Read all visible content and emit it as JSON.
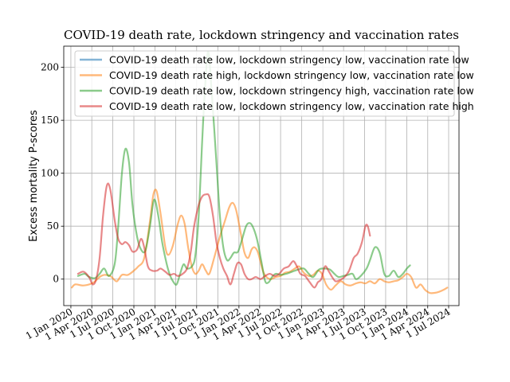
{
  "chart_data": {
    "type": "line",
    "title": "COVID-19 death rate, lockdown stringency and vaccination rates",
    "xlabel": "",
    "ylabel": "Excess mortality P-scores",
    "ylim": [
      -25,
      220
    ],
    "xlim": [
      "2019-12-01",
      "2024-08-15"
    ],
    "grid": true,
    "legend_position": "top",
    "yticks": [
      0,
      50,
      100,
      150,
      200
    ],
    "xticks": [
      {
        "date": "2020-01-01",
        "label": "1 Jan 2020"
      },
      {
        "date": "2020-04-01",
        "label": "1 Apr 2020"
      },
      {
        "date": "2020-07-01",
        "label": "1 Jul 2020"
      },
      {
        "date": "2020-10-01",
        "label": "1 Oct 2020"
      },
      {
        "date": "2021-01-01",
        "label": "1 Jan 2021"
      },
      {
        "date": "2021-04-01",
        "label": "1 Apr 2021"
      },
      {
        "date": "2021-07-01",
        "label": "1 Jul 2021"
      },
      {
        "date": "2021-10-01",
        "label": "1 Oct 2021"
      },
      {
        "date": "2022-01-01",
        "label": "1 Jan 2022"
      },
      {
        "date": "2022-04-01",
        "label": "1 Apr 2022"
      },
      {
        "date": "2022-07-01",
        "label": "1 Jul 2022"
      },
      {
        "date": "2022-10-01",
        "label": "1 Oct 2022"
      },
      {
        "date": "2023-01-01",
        "label": "1 Jan 2023"
      },
      {
        "date": "2023-04-01",
        "label": "1 Apr 2023"
      },
      {
        "date": "2023-07-01",
        "label": "1 Jul 2023"
      },
      {
        "date": "2023-10-01",
        "label": "1 Oct 2023"
      },
      {
        "date": "2024-01-01",
        "label": "1 Jan 2024"
      },
      {
        "date": "2024-04-01",
        "label": "1 Apr 2024"
      },
      {
        "date": "2024-07-01",
        "label": "1 Jul 2024"
      }
    ],
    "series": [
      {
        "name": "COVID-19 death rate low, lockdown stringency low, vaccination rate low",
        "color": "#1f77b4",
        "points": []
      },
      {
        "name": "COVID-19 death rate high, lockdown stringency low, vaccination rate low",
        "color": "#ff7f0e",
        "points": [
          [
            "2020-01-05",
            -8
          ],
          [
            "2020-01-20",
            -5
          ],
          [
            "2020-02-20",
            -6
          ],
          [
            "2020-03-20",
            -5
          ],
          [
            "2020-04-10",
            -3
          ],
          [
            "2020-05-05",
            2
          ],
          [
            "2020-05-25",
            4
          ],
          [
            "2020-06-20",
            3
          ],
          [
            "2020-07-05",
            0
          ],
          [
            "2020-07-20",
            -2
          ],
          [
            "2020-08-10",
            4
          ],
          [
            "2020-09-05",
            4
          ],
          [
            "2020-10-01",
            8
          ],
          [
            "2020-10-20",
            12
          ],
          [
            "2020-11-15",
            20
          ],
          [
            "2020-12-10",
            55
          ],
          [
            "2020-12-25",
            80
          ],
          [
            "2021-01-08",
            83
          ],
          [
            "2021-01-25",
            62
          ],
          [
            "2021-02-15",
            30
          ],
          [
            "2021-03-01",
            23
          ],
          [
            "2021-03-20",
            32
          ],
          [
            "2021-04-10",
            52
          ],
          [
            "2021-04-25",
            60
          ],
          [
            "2021-05-10",
            52
          ],
          [
            "2021-05-25",
            30
          ],
          [
            "2021-06-10",
            12
          ],
          [
            "2021-06-25",
            5
          ],
          [
            "2021-07-10",
            8
          ],
          [
            "2021-07-25",
            14
          ],
          [
            "2021-08-10",
            8
          ],
          [
            "2021-08-25",
            5
          ],
          [
            "2021-09-15",
            20
          ],
          [
            "2021-10-10",
            40
          ],
          [
            "2021-11-01",
            55
          ],
          [
            "2021-11-20",
            68
          ],
          [
            "2021-12-05",
            72
          ],
          [
            "2021-12-20",
            65
          ],
          [
            "2022-01-10",
            42
          ],
          [
            "2022-01-25",
            25
          ],
          [
            "2022-02-10",
            20
          ],
          [
            "2022-02-25",
            28
          ],
          [
            "2022-03-10",
            30
          ],
          [
            "2022-03-25",
            25
          ],
          [
            "2022-04-15",
            8
          ],
          [
            "2022-05-01",
            2
          ],
          [
            "2022-05-20",
            0
          ],
          [
            "2022-06-10",
            2
          ],
          [
            "2022-07-01",
            3
          ],
          [
            "2022-07-20",
            6
          ],
          [
            "2022-08-10",
            7
          ],
          [
            "2022-09-01",
            10
          ],
          [
            "2022-09-20",
            12
          ],
          [
            "2022-10-10",
            6
          ],
          [
            "2022-11-01",
            3
          ],
          [
            "2022-11-20",
            4
          ],
          [
            "2022-12-10",
            8
          ],
          [
            "2022-12-28",
            5
          ],
          [
            "2023-01-15",
            -5
          ],
          [
            "2023-02-05",
            -10
          ],
          [
            "2023-02-25",
            -6
          ],
          [
            "2023-03-20",
            -2
          ],
          [
            "2023-04-10",
            -5
          ],
          [
            "2023-05-01",
            -6
          ],
          [
            "2023-05-25",
            -4
          ],
          [
            "2023-06-15",
            -3
          ],
          [
            "2023-07-05",
            -4
          ],
          [
            "2023-07-25",
            -2
          ],
          [
            "2023-08-15",
            -4
          ],
          [
            "2023-09-05",
            0
          ],
          [
            "2023-09-25",
            -2
          ],
          [
            "2023-10-15",
            -3
          ],
          [
            "2023-11-05",
            -2
          ],
          [
            "2023-11-25",
            -1
          ],
          [
            "2023-12-15",
            2
          ],
          [
            "2024-01-01",
            5
          ],
          [
            "2024-01-20",
            2
          ],
          [
            "2024-02-10",
            -8
          ],
          [
            "2024-03-01",
            -5
          ],
          [
            "2024-03-20",
            -10
          ],
          [
            "2024-04-10",
            -13
          ],
          [
            "2024-05-01",
            -13
          ],
          [
            "2024-05-20",
            -12
          ],
          [
            "2024-06-10",
            -10
          ],
          [
            "2024-06-25",
            -8
          ]
        ]
      },
      {
        "name": "COVID-19 death rate low, lockdown stringency high, vaccination rate low",
        "color": "#2ca02c",
        "points": [
          [
            "2020-02-01",
            3
          ],
          [
            "2020-03-01",
            5
          ],
          [
            "2020-03-20",
            2
          ],
          [
            "2020-04-15",
            1
          ],
          [
            "2020-05-05",
            5
          ],
          [
            "2020-05-25",
            10
          ],
          [
            "2020-06-15",
            3
          ],
          [
            "2020-07-10",
            15
          ],
          [
            "2020-07-25",
            50
          ],
          [
            "2020-08-10",
            100
          ],
          [
            "2020-08-25",
            123
          ],
          [
            "2020-09-10",
            110
          ],
          [
            "2020-09-25",
            70
          ],
          [
            "2020-10-15",
            40
          ],
          [
            "2020-11-01",
            28
          ],
          [
            "2020-11-20",
            27
          ],
          [
            "2020-12-10",
            50
          ],
          [
            "2020-12-28",
            75
          ],
          [
            "2021-01-15",
            60
          ],
          [
            "2021-02-01",
            35
          ],
          [
            "2021-02-20",
            15
          ],
          [
            "2021-03-05",
            5
          ],
          [
            "2021-03-20",
            -2
          ],
          [
            "2021-04-05",
            -5
          ],
          [
            "2021-04-20",
            5
          ],
          [
            "2021-05-05",
            14
          ],
          [
            "2021-05-20",
            10
          ],
          [
            "2021-06-10",
            12
          ],
          [
            "2021-06-25",
            22
          ],
          [
            "2021-07-10",
            60
          ],
          [
            "2021-07-25",
            130
          ],
          [
            "2021-08-05",
            175
          ],
          [
            "2021-08-20",
            215
          ],
          [
            "2021-09-05",
            175
          ],
          [
            "2021-09-25",
            110
          ],
          [
            "2021-10-10",
            60
          ],
          [
            "2021-10-25",
            30
          ],
          [
            "2021-11-10",
            18
          ],
          [
            "2021-11-25",
            20
          ],
          [
            "2021-12-10",
            25
          ],
          [
            "2021-12-28",
            26
          ],
          [
            "2022-01-15",
            38
          ],
          [
            "2022-02-01",
            50
          ],
          [
            "2022-02-15",
            53
          ],
          [
            "2022-03-01",
            50
          ],
          [
            "2022-03-20",
            38
          ],
          [
            "2022-04-10",
            15
          ],
          [
            "2022-04-25",
            -2
          ],
          [
            "2022-05-10",
            -3
          ],
          [
            "2022-05-25",
            2
          ],
          [
            "2022-06-10",
            5
          ],
          [
            "2022-07-01",
            4
          ],
          [
            "2022-07-25",
            5
          ],
          [
            "2022-08-20",
            7
          ],
          [
            "2022-09-15",
            9
          ],
          [
            "2022-10-10",
            10
          ],
          [
            "2022-11-01",
            5
          ],
          [
            "2022-11-20",
            2
          ],
          [
            "2022-12-15",
            9
          ],
          [
            "2023-01-10",
            10
          ],
          [
            "2023-02-01",
            9
          ],
          [
            "2023-02-20",
            5
          ],
          [
            "2023-03-10",
            2
          ],
          [
            "2023-04-01",
            3
          ],
          [
            "2023-04-20",
            4
          ],
          [
            "2023-05-10",
            5
          ],
          [
            "2023-05-25",
            0
          ],
          [
            "2023-06-15",
            3
          ],
          [
            "2023-07-10",
            10
          ],
          [
            "2023-07-25",
            18
          ],
          [
            "2023-08-15",
            30
          ],
          [
            "2023-09-05",
            25
          ],
          [
            "2023-09-25",
            5
          ],
          [
            "2023-10-15",
            3
          ],
          [
            "2023-11-05",
            8
          ],
          [
            "2023-11-25",
            2
          ],
          [
            "2023-12-15",
            5
          ],
          [
            "2024-01-01",
            10
          ],
          [
            "2024-01-15",
            13
          ]
        ]
      },
      {
        "name": "COVID-19 death rate low, lockdown stringency low, vaccination rate high",
        "color": "#d62728",
        "points": [
          [
            "2020-02-01",
            5
          ],
          [
            "2020-02-25",
            7
          ],
          [
            "2020-03-20",
            2
          ],
          [
            "2020-04-05",
            -5
          ],
          [
            "2020-04-20",
            0
          ],
          [
            "2020-05-05",
            20
          ],
          [
            "2020-05-20",
            60
          ],
          [
            "2020-06-05",
            88
          ],
          [
            "2020-06-20",
            85
          ],
          [
            "2020-07-10",
            55
          ],
          [
            "2020-07-25",
            38
          ],
          [
            "2020-08-10",
            33
          ],
          [
            "2020-08-25",
            35
          ],
          [
            "2020-09-10",
            32
          ],
          [
            "2020-09-25",
            26
          ],
          [
            "2020-10-15",
            28
          ],
          [
            "2020-11-01",
            38
          ],
          [
            "2020-11-15",
            30
          ],
          [
            "2020-12-01",
            12
          ],
          [
            "2020-12-20",
            8
          ],
          [
            "2021-01-10",
            8
          ],
          [
            "2021-01-25",
            10
          ],
          [
            "2021-02-15",
            7
          ],
          [
            "2021-03-05",
            4
          ],
          [
            "2021-03-25",
            5
          ],
          [
            "2021-04-10",
            3
          ],
          [
            "2021-05-01",
            5
          ],
          [
            "2021-05-20",
            10
          ],
          [
            "2021-06-05",
            25
          ],
          [
            "2021-06-20",
            50
          ],
          [
            "2021-07-10",
            70
          ],
          [
            "2021-07-25",
            78
          ],
          [
            "2021-08-10",
            80
          ],
          [
            "2021-08-25",
            78
          ],
          [
            "2021-09-10",
            60
          ],
          [
            "2021-09-25",
            35
          ],
          [
            "2021-10-10",
            20
          ],
          [
            "2021-10-25",
            10
          ],
          [
            "2021-11-10",
            3
          ],
          [
            "2021-11-25",
            -5
          ],
          [
            "2021-12-10",
            5
          ],
          [
            "2021-12-25",
            15
          ],
          [
            "2022-01-10",
            14
          ],
          [
            "2022-01-25",
            5
          ],
          [
            "2022-02-10",
            0
          ],
          [
            "2022-02-25",
            0
          ],
          [
            "2022-03-15",
            2
          ],
          [
            "2022-04-05",
            0
          ],
          [
            "2022-04-25",
            3
          ],
          [
            "2022-05-15",
            5
          ],
          [
            "2022-06-05",
            3
          ],
          [
            "2022-06-25",
            5
          ],
          [
            "2022-07-15",
            10
          ],
          [
            "2022-08-05",
            12
          ],
          [
            "2022-08-25",
            17
          ],
          [
            "2022-09-10",
            12
          ],
          [
            "2022-09-25",
            5
          ],
          [
            "2022-10-15",
            3
          ],
          [
            "2022-11-05",
            -3
          ],
          [
            "2022-11-25",
            -8
          ],
          [
            "2022-12-10",
            -3
          ],
          [
            "2022-12-25",
            0
          ],
          [
            "2023-01-10",
            12
          ],
          [
            "2023-01-25",
            8
          ],
          [
            "2023-02-10",
            2
          ],
          [
            "2023-02-25",
            -2
          ],
          [
            "2023-03-15",
            -1
          ],
          [
            "2023-04-05",
            2
          ],
          [
            "2023-04-25",
            8
          ],
          [
            "2023-05-15",
            20
          ],
          [
            "2023-06-01",
            24
          ],
          [
            "2023-06-20",
            35
          ],
          [
            "2023-07-05",
            50
          ],
          [
            "2023-07-15",
            50
          ],
          [
            "2023-07-25",
            41
          ]
        ]
      }
    ]
  }
}
